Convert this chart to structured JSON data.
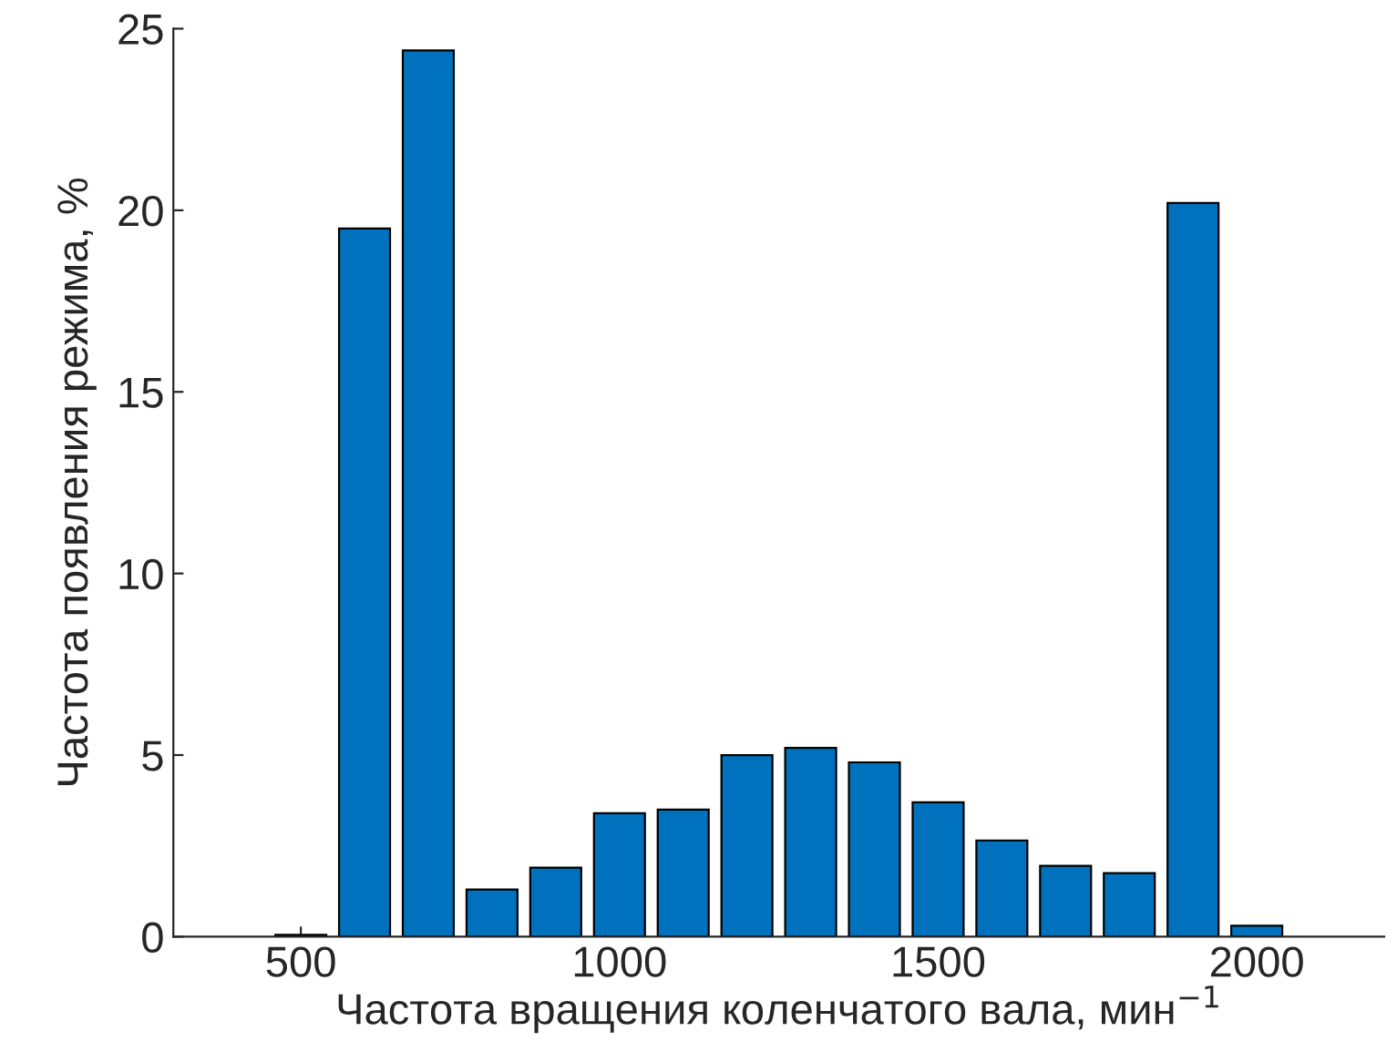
{
  "chart_data": {
    "type": "bar",
    "xlabel": "Частота вращения коленчатого вала, мин$^{−1}$",
    "ylabel": "Частота появления режима, %",
    "x": [
      500,
      600,
      700,
      800,
      900,
      1000,
      1100,
      1200,
      1300,
      1400,
      1500,
      1600,
      1700,
      1800,
      1900,
      2000
    ],
    "values": [
      0.05,
      19.5,
      24.4,
      1.3,
      1.9,
      3.4,
      3.5,
      5.0,
      5.2,
      4.8,
      3.7,
      2.65,
      1.95,
      1.75,
      20.2,
      0.3
    ],
    "color": "#0072bd",
    "xlim": [
      300,
      2200
    ],
    "xticks": [
      500,
      1000,
      1500,
      2000
    ],
    "ylim": [
      0,
      25
    ],
    "yticks": [
      0,
      5,
      10,
      15,
      20,
      25
    ],
    "grid": false,
    "legend": false
  }
}
